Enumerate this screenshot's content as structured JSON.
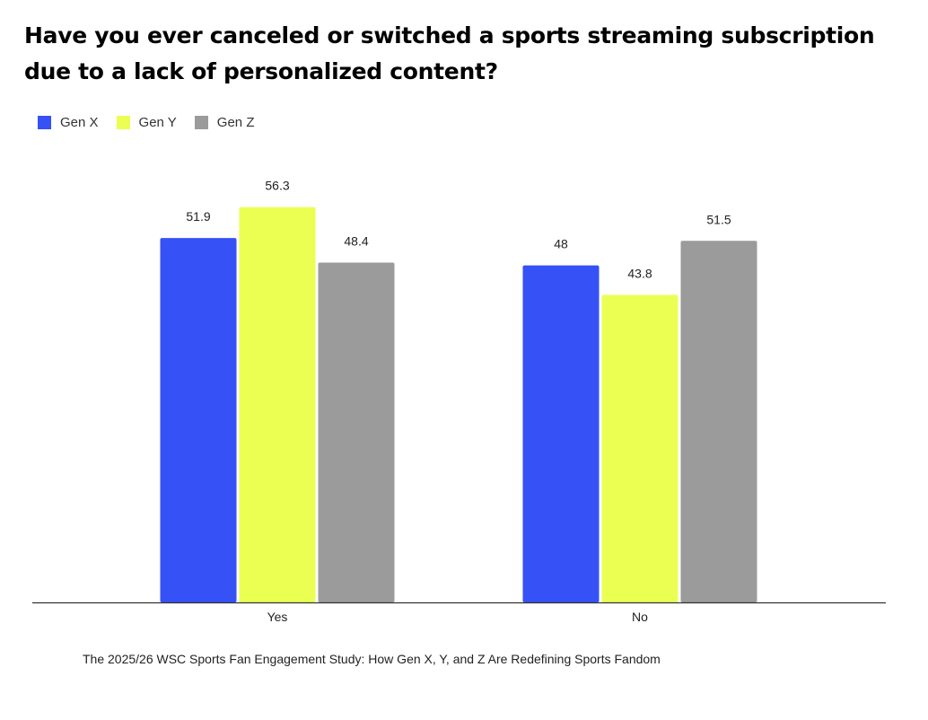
{
  "title": "Have you ever canceled or switched a sports streaming subscription due to a lack of personalized content?",
  "footnote": "The 2025/26 WSC Sports Fan Engagement Study: How Gen X, Y, and Z Are Redefining Sports Fandom",
  "chart_data": {
    "type": "bar",
    "title": "Have you ever canceled or switched a sports streaming subscription due to a lack of personalized content?",
    "xlabel": "",
    "ylabel": "",
    "categories": [
      "Yes",
      "No"
    ],
    "series": [
      {
        "name": "Gen X",
        "color": "#3651f5",
        "values": [
          51.9,
          48
        ]
      },
      {
        "name": "Gen Y",
        "color": "#eaff52",
        "values": [
          56.3,
          43.8
        ]
      },
      {
        "name": "Gen Z",
        "color": "#9b9b9b",
        "values": [
          48.4,
          51.5
        ]
      }
    ],
    "data_labels": [
      [
        "51.9",
        "48"
      ],
      [
        "56.3",
        "43.8"
      ],
      [
        "48.4",
        "51.5"
      ]
    ],
    "ylim": [
      0,
      60
    ],
    "grid": false,
    "legend_position": "top-left"
  }
}
